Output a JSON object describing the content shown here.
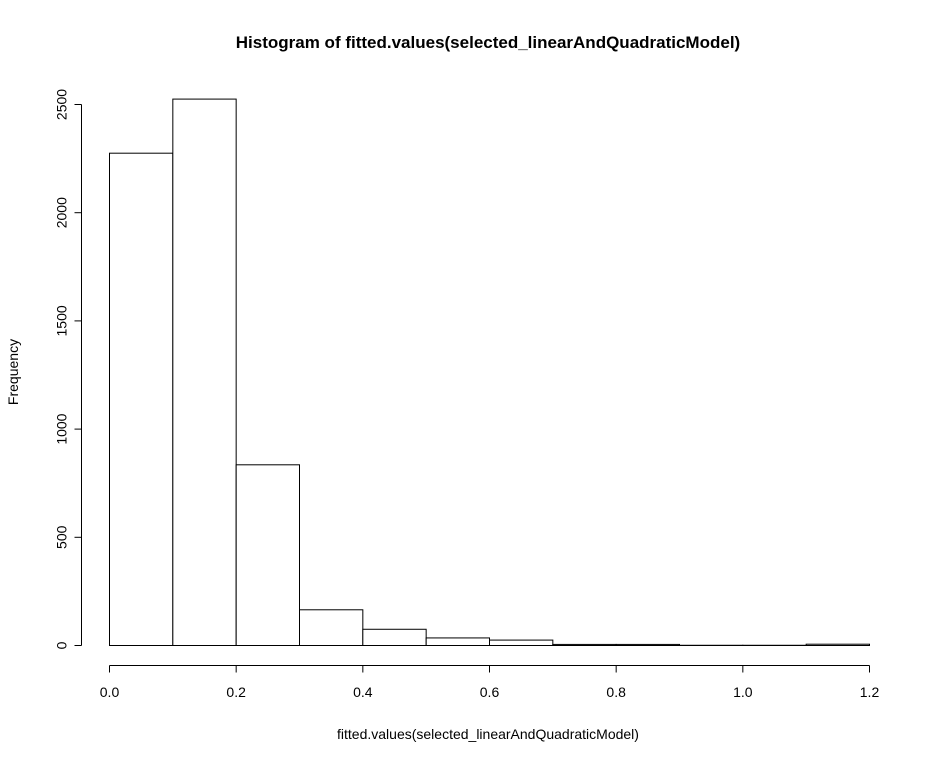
{
  "chart_data": {
    "type": "bar",
    "title": "Histogram of fitted.values(selected_linearAndQuadraticModel)",
    "xlabel": "fitted.values(selected_linearAndQuadraticModel)",
    "ylabel": "Frequency",
    "xlim": [
      0.0,
      1.2
    ],
    "ylim": [
      0,
      2500
    ],
    "x_ticks": [
      "0.0",
      "0.2",
      "0.4",
      "0.6",
      "0.8",
      "1.0",
      "1.2"
    ],
    "y_ticks": [
      "0",
      "500",
      "1000",
      "1500",
      "2000",
      "2500"
    ],
    "bins": [
      {
        "from": 0.0,
        "to": 0.1,
        "value": 2275
      },
      {
        "from": 0.1,
        "to": 0.2,
        "value": 2525
      },
      {
        "from": 0.2,
        "to": 0.3,
        "value": 835
      },
      {
        "from": 0.3,
        "to": 0.4,
        "value": 165
      },
      {
        "from": 0.4,
        "to": 0.5,
        "value": 75
      },
      {
        "from": 0.5,
        "to": 0.6,
        "value": 35
      },
      {
        "from": 0.6,
        "to": 0.7,
        "value": 25
      },
      {
        "from": 0.7,
        "to": 0.8,
        "value": 5
      },
      {
        "from": 0.8,
        "to": 0.9,
        "value": 5
      },
      {
        "from": 0.9,
        "to": 1.0,
        "value": 1
      },
      {
        "from": 1.0,
        "to": 1.1,
        "value": 1
      },
      {
        "from": 1.1,
        "to": 1.2,
        "value": 6
      }
    ],
    "grid": false,
    "legend": "none"
  }
}
